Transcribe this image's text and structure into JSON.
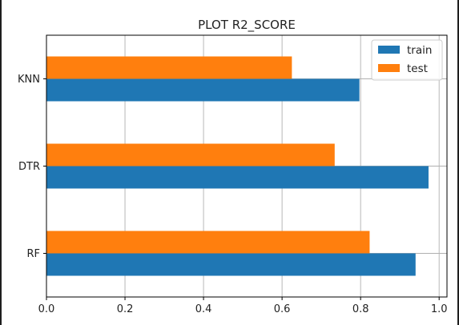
{
  "chart_data": {
    "type": "bar",
    "orientation": "horizontal",
    "title": "PLOT R2_SCORE",
    "categories": [
      "RF",
      "DTR",
      "KNN"
    ],
    "series": [
      {
        "name": "train",
        "color": "#1f77b4",
        "values": [
          0.94,
          0.973,
          0.797
        ]
      },
      {
        "name": "test",
        "color": "#ff7f0e",
        "values": [
          0.823,
          0.734,
          0.625
        ]
      }
    ],
    "xlim": [
      0.0,
      1.02
    ],
    "xticks": [
      "0.0",
      "0.2",
      "0.4",
      "0.6",
      "0.8",
      "1.0"
    ],
    "xtick_values": [
      0.0,
      0.2,
      0.4,
      0.6,
      0.8,
      1.0
    ],
    "grid": true,
    "legend_position": "top-right"
  }
}
